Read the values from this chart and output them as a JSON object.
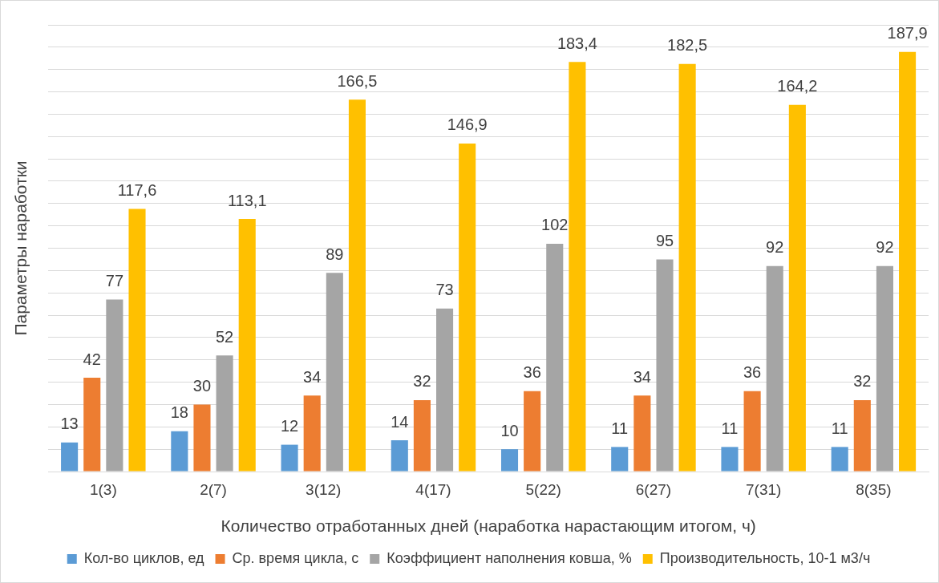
{
  "chart_data": {
    "type": "bar",
    "xlabel": "Количество отработанных дней (наработка нарастающим итогом, ч)",
    "ylabel": "Параметры наработки",
    "categories": [
      "1(3)",
      "2(7)",
      "3(12)",
      "4(17)",
      "5(22)",
      "6(27)",
      "7(31)",
      "8(35)"
    ],
    "series": [
      {
        "name": "Кол-во циклов, ед",
        "color": "#5b9bd5",
        "values": [
          13,
          18,
          12,
          14,
          10,
          11,
          11,
          11
        ],
        "value_labels": [
          "13",
          "18",
          "12",
          "14",
          "10",
          "11",
          "11",
          "11"
        ]
      },
      {
        "name": "Ср. время цикла, с",
        "color": "#ed7d31",
        "values": [
          42,
          30,
          34,
          32,
          36,
          34,
          36,
          32
        ],
        "value_labels": [
          "42",
          "30",
          "34",
          "32",
          "36",
          "34",
          "36",
          "32"
        ]
      },
      {
        "name": "Коэффициент наполнения ковша, %",
        "color": "#a5a5a5",
        "values": [
          77,
          52,
          89,
          73,
          102,
          95,
          92,
          92
        ],
        "value_labels": [
          "77",
          "52",
          "89",
          "73",
          "102",
          "95",
          "92",
          "92"
        ]
      },
      {
        "name": "Производительность, 10-1 м3/ч",
        "color": "#ffc000",
        "values": [
          117.6,
          113.1,
          166.5,
          146.9,
          183.4,
          182.5,
          164.2,
          187.9
        ],
        "value_labels": [
          "117,6",
          "113,1",
          "166,5",
          "146,9",
          "183,4",
          "182,5",
          "164,2",
          "187,9"
        ]
      }
    ],
    "ylim": [
      0,
      200
    ],
    "yticks": [
      {
        "value": 0,
        "label": null
      },
      {
        "value": 10,
        "label": null
      },
      {
        "value": 20,
        "label": null
      },
      {
        "value": 30,
        "label": null
      },
      {
        "value": 40,
        "label": null
      },
      {
        "value": 50,
        "label": null
      },
      {
        "value": 60,
        "label": null
      },
      {
        "value": 70,
        "label": null
      },
      {
        "value": 80,
        "label": null
      },
      {
        "value": 90,
        "label": null
      },
      {
        "value": 100,
        "label": null
      },
      {
        "value": 110,
        "label": null
      },
      {
        "value": 120,
        "label": null
      },
      {
        "value": 130,
        "label": null
      },
      {
        "value": 140,
        "label": null
      },
      {
        "value": 150,
        "label": null
      },
      {
        "value": 160,
        "label": null
      },
      {
        "value": 170,
        "label": null
      },
      {
        "value": 180,
        "label": null
      },
      {
        "value": 190,
        "label": null
      },
      {
        "value": 200,
        "label": null
      }
    ],
    "tick_labels": "x",
    "grid": "y",
    "legend": "bottom"
  }
}
